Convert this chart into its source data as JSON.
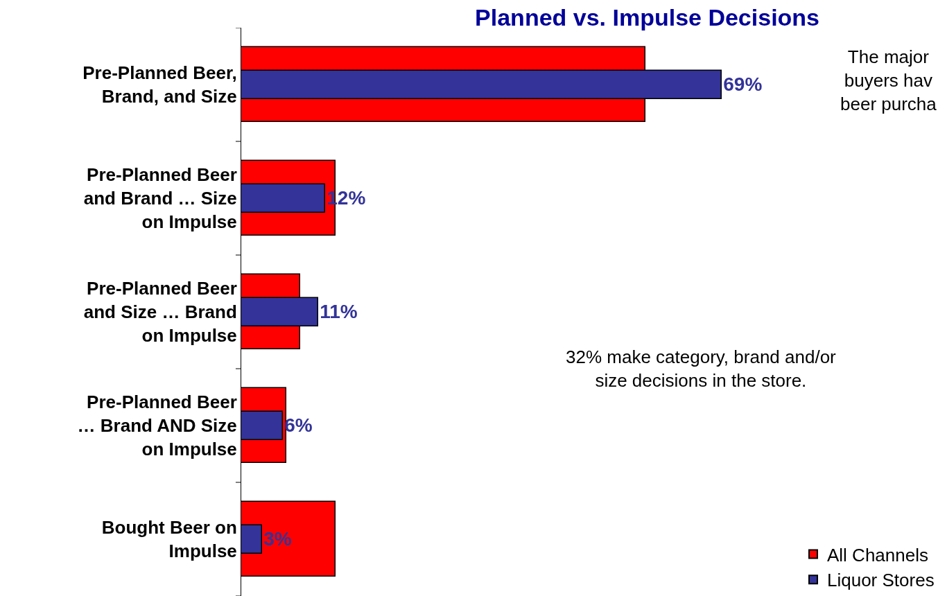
{
  "chart_data": {
    "type": "bar",
    "orientation": "horizontal",
    "title": "Planned vs. Impulse Decisions",
    "categories": [
      "Pre-Planned Beer,\nBrand, and Size",
      "Pre-Planned Beer\nand Brand … Size\non Impulse",
      "Pre-Planned Beer\nand Size … Brand\non Impulse",
      "Pre-Planned Beer\n… Brand AND Size\non Impulse",
      "Bought Beer on\nImpulse"
    ],
    "series": [
      {
        "name": "All Channels",
        "color": "#ff0000",
        "values": [
          58,
          13.5,
          8.5,
          6.5,
          13.5
        ]
      },
      {
        "name": "Liquor Stores",
        "color": "#333399",
        "values": [
          69,
          12,
          11,
          6,
          3
        ],
        "value_labels": [
          "69%",
          "12%",
          "11%",
          "6%",
          "3%"
        ]
      }
    ],
    "xlim": [
      0,
      100
    ],
    "tick_labels": "y",
    "legend": "bottom right",
    "annotations": [
      "The major\nbuyers hav\nbeer purcha",
      "32% make category, brand and/or\nsize decisions in the store."
    ]
  }
}
